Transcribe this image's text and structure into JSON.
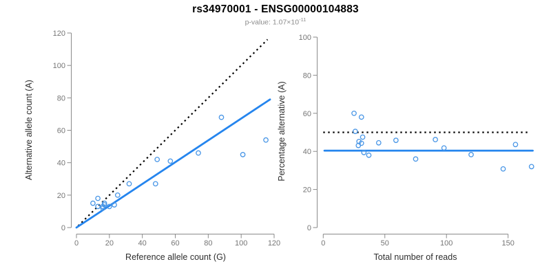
{
  "header": {
    "title": "rs34970001 - ENSG00000104883",
    "p_value_base": "p-value: 1.07×10",
    "p_value_exponent": "-11"
  },
  "colors": {
    "point_blue": "#4795e6",
    "line_blue": "#2585ee",
    "dotted_black": "#000000",
    "axis_gray": "#8a8a8a",
    "tick_text_gray": "#757575",
    "subtitle_gray": "#8c8c8c"
  },
  "chart_data": [
    {
      "type": "scatter",
      "position": "left",
      "xlabel": "Reference allele count (G)",
      "ylabel": "Alternative allele count (A)",
      "xlim": [
        0,
        120
      ],
      "ylim": [
        0,
        120
      ],
      "xticks": [
        0,
        20,
        40,
        60,
        80,
        100,
        120
      ],
      "yticks": [
        0,
        20,
        40,
        60,
        80,
        100,
        120
      ],
      "grid": false,
      "point_color": "#4795e6",
      "points": [
        [
          10,
          15
        ],
        [
          13,
          18
        ],
        [
          13,
          13
        ],
        [
          16,
          12
        ],
        [
          16,
          13
        ],
        [
          17,
          14
        ],
        [
          17,
          15
        ],
        [
          20,
          13
        ],
        [
          23,
          14
        ],
        [
          25,
          20
        ],
        [
          32,
          27
        ],
        [
          48,
          27
        ],
        [
          49,
          42
        ],
        [
          57,
          41
        ],
        [
          74,
          46
        ],
        [
          88,
          68
        ],
        [
          101,
          45
        ],
        [
          115,
          54
        ]
      ],
      "lines": [
        {
          "name": "identity-line",
          "description": "y = x expected 50/50 line",
          "style": "dotted",
          "color": "#000000",
          "width": 2.2,
          "from": [
            1,
            1
          ],
          "to": [
            116,
            116
          ]
        },
        {
          "name": "regression-line",
          "description": "fitted allelic-imbalance line, slope ~0.67",
          "style": "solid",
          "color": "#2585ee",
          "width": 2.8,
          "from": [
            0,
            0
          ],
          "to": [
            117.5,
            79
          ]
        }
      ]
    },
    {
      "type": "scatter",
      "position": "right",
      "xlabel": "Total number of reads",
      "ylabel": "Percentage alternative (A)",
      "xlim": [
        0,
        170
      ],
      "ylim": [
        0,
        100
      ],
      "xticks": [
        0,
        50,
        100,
        150
      ],
      "yticks": [
        0,
        20,
        40,
        60,
        80,
        100
      ],
      "grid": false,
      "point_color": "#4795e6",
      "points": [
        [
          25,
          60
        ],
        [
          31,
          58
        ],
        [
          26,
          50.5
        ],
        [
          28.5,
          43.1
        ],
        [
          29,
          45.2
        ],
        [
          31,
          44.3
        ],
        [
          32,
          47.5
        ],
        [
          33,
          39.4
        ],
        [
          37,
          38
        ],
        [
          45,
          44.5
        ],
        [
          59,
          45.8
        ],
        [
          75,
          36
        ],
        [
          91,
          46.2
        ],
        [
          98,
          41.8
        ],
        [
          120,
          38.3
        ],
        [
          146,
          30.8
        ],
        [
          156,
          43.6
        ],
        [
          169,
          32
        ]
      ],
      "lines": [
        {
          "name": "reference-line",
          "description": "50% reference level",
          "style": "dotted",
          "color": "#000000",
          "width": 2.2,
          "from": [
            0,
            50
          ],
          "to": [
            167,
            50
          ]
        },
        {
          "name": "mean-line",
          "description": "mean alternative percentage ~40.4%",
          "style": "solid",
          "color": "#2585ee",
          "width": 2.8,
          "from": [
            1,
            40.4
          ],
          "to": [
            170,
            40.4
          ]
        }
      ]
    }
  ]
}
